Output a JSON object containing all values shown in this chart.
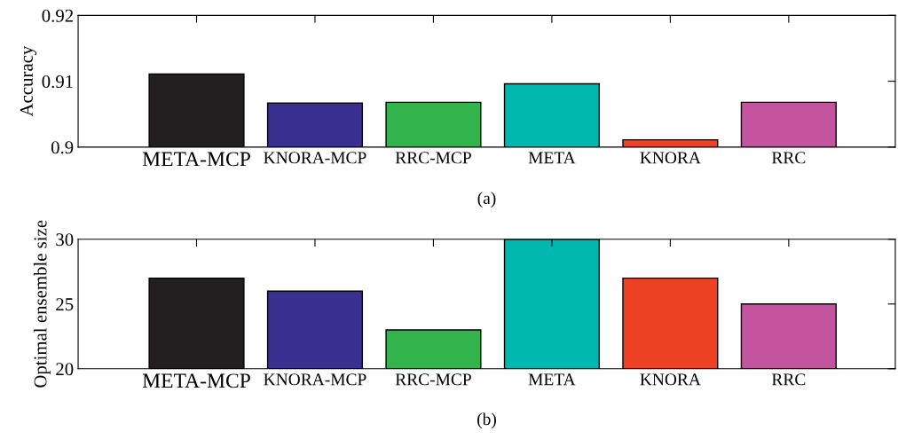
{
  "chart_data": [
    {
      "type": "bar",
      "ylabel": "Accuracy",
      "categories": [
        "META-MCP",
        "KNORA-MCP",
        "RRC-MCP",
        "META",
        "KNORA",
        "RRC"
      ],
      "values": [
        0.9111,
        0.9067,
        0.9068,
        0.9096,
        0.9011,
        0.9068
      ],
      "colors": [
        "#231f20",
        "#3a3091",
        "#33b34b",
        "#00b8b0",
        "#ee4224",
        "#c2559e"
      ],
      "ylim": [
        0.9,
        0.92
      ],
      "yticks": [
        0.9,
        0.91,
        0.92
      ],
      "grid": false,
      "legend": false,
      "annotations": [
        "(a)"
      ]
    },
    {
      "type": "bar",
      "ylabel": "Optimal ensemble size",
      "categories": [
        "META-MCP",
        "KNORA-MCP",
        "RRC-MCP",
        "META",
        "KNORA",
        "RRC"
      ],
      "values": [
        27,
        26,
        23,
        30,
        27,
        25
      ],
      "colors": [
        "#231f20",
        "#3a3091",
        "#33b34b",
        "#00b8b0",
        "#ee4224",
        "#c2559e"
      ],
      "ylim": [
        20,
        30
      ],
      "yticks": [
        20,
        25,
        30
      ],
      "grid": false,
      "legend": false,
      "annotations": [
        "(b)"
      ]
    }
  ]
}
